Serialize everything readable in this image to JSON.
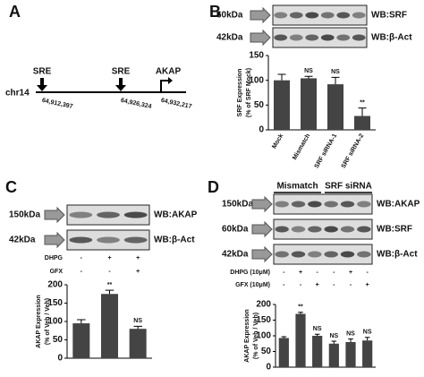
{
  "panels": {
    "A": {
      "label": "A",
      "chromosome": "chr14",
      "features": [
        {
          "label": "SRE",
          "position": "64,912,397"
        },
        {
          "label": "SRE",
          "position": "64,926,324"
        },
        {
          "label": "AKAP",
          "position": "64,932,217"
        }
      ]
    },
    "B": {
      "label": "B",
      "blots": [
        {
          "size": "60kDa",
          "probe": "WB:SRF"
        },
        {
          "size": "42kDa",
          "probe": "WB:β-Act"
        }
      ]
    },
    "C": {
      "label": "C",
      "blots": [
        {
          "size": "150kDa",
          "probe": "WB:AKAP"
        },
        {
          "size": "42kDa",
          "probe": "WB:β-Act"
        }
      ],
      "treatments": [
        {
          "name": "DHPG",
          "states": [
            "-",
            "+",
            "+"
          ]
        },
        {
          "name": "GFX",
          "states": [
            "-",
            "-",
            "+"
          ]
        }
      ]
    },
    "D": {
      "label": "D",
      "groups": [
        "Mismatch",
        "SRF siRNA"
      ],
      "blots": [
        {
          "size": "150kDa",
          "probe": "WB:AKAP"
        },
        {
          "size": "60kDa",
          "probe": "WB:SRF"
        },
        {
          "size": "42kDa",
          "probe": "WB:β-Act"
        }
      ],
      "treatments": [
        {
          "name": "DHPG (10μM)",
          "states": [
            "-",
            "+",
            "-",
            "-",
            "+",
            "-"
          ]
        },
        {
          "name": "GFX (10μM)",
          "states": [
            "-",
            "-",
            "+",
            "-",
            "-",
            "+"
          ]
        }
      ]
    }
  },
  "chart_data": [
    {
      "type": "bar",
      "y_label": [
        "SRF Expression",
        "(% of SRF Mock)"
      ],
      "categories": [
        "Mock",
        "Mismatch",
        "SRF siRNA-1",
        "SRF siRNA-2"
      ],
      "values": [
        100,
        104,
        92,
        28
      ],
      "errors": [
        12,
        4,
        14,
        16
      ],
      "annotations": [
        null,
        "NS",
        "NS",
        "**"
      ],
      "color": "#444444",
      "ylim": [
        0,
        150
      ],
      "yticks": [
        0,
        50,
        100,
        150
      ]
    },
    {
      "type": "bar",
      "y_label": [
        "AKAP Expression",
        "(% of Veh / Veh)"
      ],
      "categories": [
        null,
        null,
        null
      ],
      "values": [
        95,
        175,
        80
      ],
      "errors": [
        10,
        10,
        7
      ],
      "annotations": [
        null,
        "**",
        "NS"
      ],
      "color": "#444444",
      "ylim": [
        0,
        200
      ],
      "yticks": [
        0,
        50,
        100,
        150,
        200
      ]
    },
    {
      "type": "bar",
      "y_label": [
        "AKAP Expression",
        "(% of Veh / Veh)"
      ],
      "categories": [
        null,
        null,
        null,
        null,
        null,
        null
      ],
      "values": [
        93,
        170,
        100,
        75,
        80,
        85
      ],
      "errors": [
        4,
        5,
        5,
        8,
        10,
        10
      ],
      "annotations": [
        null,
        "**",
        "NS",
        "NS",
        "NS",
        "NS"
      ],
      "color": "#444444",
      "ylim": [
        0,
        200
      ],
      "yticks": [
        0,
        50,
        100,
        150,
        200
      ]
    }
  ]
}
